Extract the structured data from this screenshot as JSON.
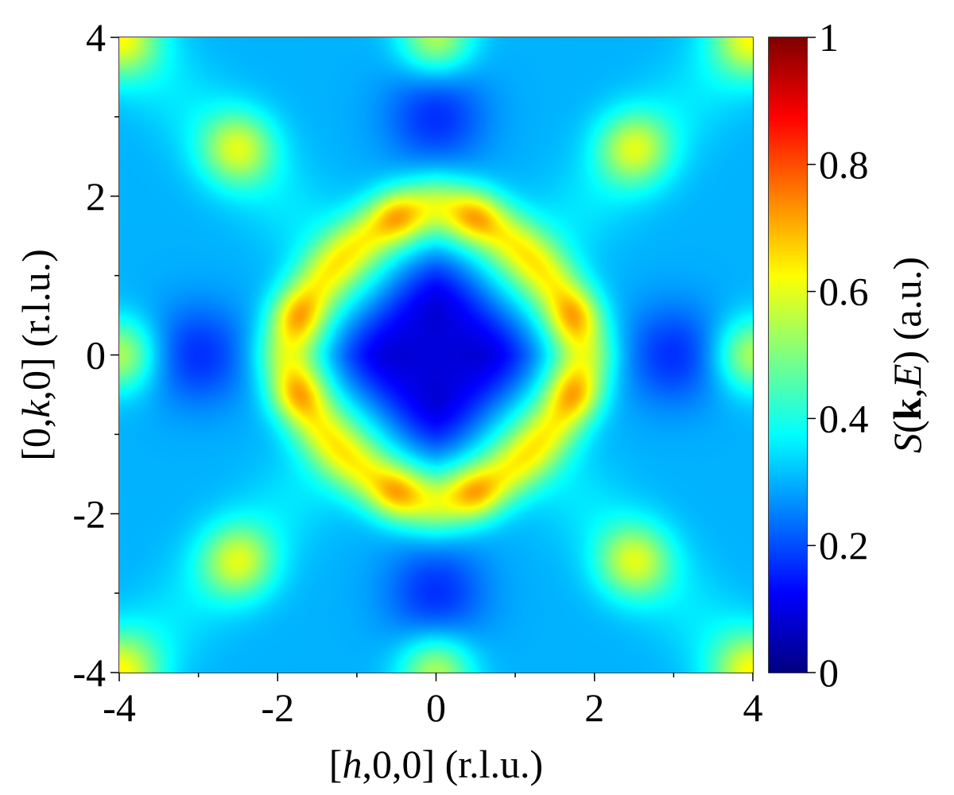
{
  "chart_data": {
    "type": "heatmap",
    "xlabel": {
      "prefix": "[",
      "var": "h",
      "suffix": ",0,0] (r.l.u.)"
    },
    "ylabel": {
      "prefix": "[0,",
      "var": "k",
      "suffix": ",0] (r.l.u.)"
    },
    "xlim": [
      -4,
      4
    ],
    "ylim": [
      -4,
      4
    ],
    "x_ticks": [
      -4,
      -2,
      0,
      2,
      4
    ],
    "x_tick_labels": [
      "-4",
      "-2",
      "0",
      "2",
      "4"
    ],
    "y_ticks": [
      -4,
      -2,
      0,
      2,
      4
    ],
    "y_tick_labels": [
      "-4",
      "-2",
      "0",
      "2",
      "4"
    ],
    "minor_tick_step": 1,
    "colormap": "jet",
    "colorbar": {
      "label": {
        "s": "S",
        "open": "(",
        "k": "k",
        "comma": ",",
        "e": "E",
        "close": ")",
        "unit": " (a.u.)"
      },
      "range": [
        0,
        1
      ],
      "ticks": [
        0,
        0.2,
        0.4,
        0.6,
        0.8,
        1
      ],
      "tick_labels": [
        "0",
        "0.2",
        "0.4",
        "0.6",
        "0.8",
        "1"
      ]
    },
    "features": [
      {
        "name": "central minimum",
        "h": 0,
        "k": 0,
        "intensity": 0.04
      },
      {
        "name": "ring maxima",
        "points": [
          [
            0.5,
            1.75
          ],
          [
            -0.5,
            1.75
          ],
          [
            0.5,
            -1.75
          ],
          [
            -0.5,
            -1.75
          ],
          [
            1.75,
            0.5
          ],
          [
            1.75,
            -0.5
          ],
          [
            -1.75,
            0.5
          ],
          [
            -1.75,
            -0.5
          ]
        ],
        "intensity": 0.72
      },
      {
        "name": "ring between maxima",
        "intensity": 0.6
      },
      {
        "name": "side minima",
        "points": [
          [
            3,
            0
          ],
          [
            -3,
            0
          ],
          [
            0,
            3
          ],
          [
            0,
            -3
          ]
        ],
        "intensity": 0.17
      },
      {
        "name": "diagonal maxima",
        "points": [
          [
            2.5,
            2.6
          ],
          [
            -2.5,
            2.6
          ],
          [
            2.5,
            -2.6
          ],
          [
            -2.5,
            -2.6
          ]
        ],
        "intensity": 0.55
      },
      {
        "name": "corner maxima",
        "points": [
          [
            4,
            4
          ],
          [
            -4,
            4
          ],
          [
            4,
            -4
          ],
          [
            -4,
            -4
          ]
        ],
        "intensity": 0.58
      },
      {
        "name": "edge maxima",
        "points": [
          [
            0,
            4
          ],
          [
            0,
            -4
          ],
          [
            4,
            0
          ],
          [
            -4,
            0
          ]
        ],
        "intensity": 0.55
      },
      {
        "name": "background",
        "intensity": 0.3
      }
    ]
  }
}
